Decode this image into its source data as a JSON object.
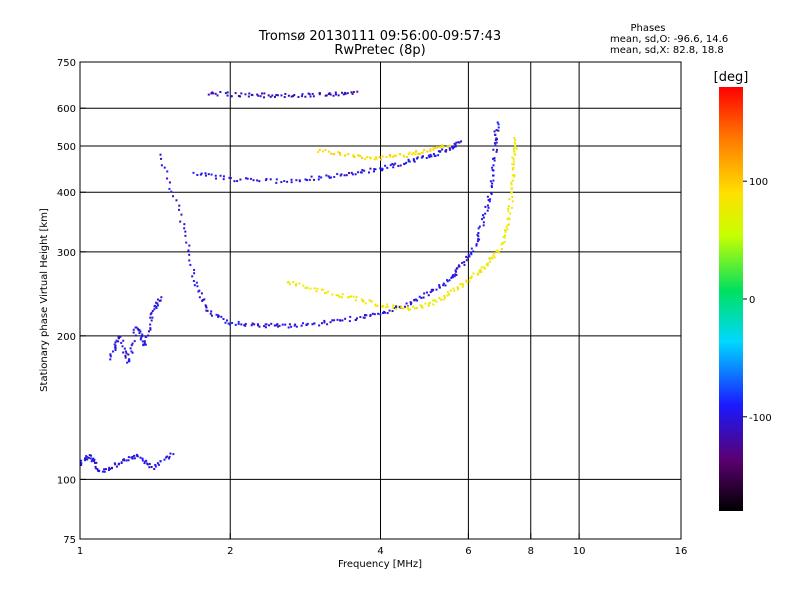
{
  "chart_data": {
    "type": "scatter",
    "title": "Tromsø 20130111 09:56:00-09:57:43",
    "subtitle": "RwPretec (8p)",
    "xlabel": "Frequency [MHz]",
    "ylabel": "Stationary phase Virtual Height [km]",
    "x_scale": "log2",
    "y_scale": "log",
    "xlim": [
      1,
      16
    ],
    "ylim": [
      75,
      750
    ],
    "x_ticks": [
      1,
      2,
      4,
      6,
      8,
      10,
      16
    ],
    "x_tick_labels": [
      "1",
      "2",
      "4",
      "6",
      "8",
      "10",
      "16"
    ],
    "y_ticks": [
      75,
      100,
      200,
      300,
      400,
      500,
      600,
      750
    ],
    "y_tick_labels": [
      "75",
      "100",
      "200",
      "300",
      "400",
      "500",
      "600",
      "750"
    ],
    "grid_x": [
      2,
      4,
      6,
      8,
      10
    ],
    "grid_y": [
      100,
      200,
      300,
      400,
      500,
      600
    ],
    "grid": true,
    "stats": {
      "heading": "Phases",
      "o_line": "mean, sd,O: -96.6, 14.6",
      "x_line": "mean, sd,X: 82.8, 18.8"
    },
    "colorbar": {
      "label": "[deg]",
      "range": [
        -180,
        180
      ],
      "ticks": [
        100,
        0,
        -100
      ],
      "tick_labels": [
        "100",
        "0",
        "-100"
      ]
    },
    "traces": [
      {
        "kind": "o-mode F trace",
        "phase": -100,
        "points": [
          [
            1.45,
            480
          ],
          [
            1.6,
            350
          ],
          [
            1.7,
            260
          ],
          [
            1.8,
            225
          ],
          [
            2.0,
            213
          ],
          [
            2.3,
            210
          ],
          [
            2.6,
            210
          ],
          [
            3.0,
            212
          ],
          [
            3.5,
            217
          ],
          [
            4.0,
            222
          ],
          [
            4.5,
            232
          ],
          [
            5.0,
            245
          ],
          [
            5.5,
            262
          ],
          [
            5.8,
            280
          ],
          [
            6.2,
            310
          ],
          [
            6.5,
            360
          ],
          [
            6.7,
            420
          ],
          [
            6.8,
            500
          ],
          [
            6.85,
            560
          ]
        ]
      },
      {
        "kind": "x-mode F trace",
        "phase": 80,
        "points": [
          [
            2.6,
            260
          ],
          [
            3.0,
            250
          ],
          [
            3.5,
            240
          ],
          [
            4.0,
            232
          ],
          [
            4.5,
            228
          ],
          [
            5.0,
            232
          ],
          [
            5.5,
            245
          ],
          [
            6.0,
            262
          ],
          [
            6.5,
            280
          ],
          [
            6.9,
            300
          ],
          [
            7.2,
            340
          ],
          [
            7.35,
            400
          ],
          [
            7.4,
            470
          ],
          [
            7.45,
            520
          ]
        ]
      },
      {
        "kind": "upper echo trace",
        "phase": -100,
        "points": [
          [
            1.7,
            440
          ],
          [
            2.0,
            425
          ],
          [
            2.5,
            422
          ],
          [
            3.0,
            428
          ],
          [
            3.5,
            437
          ],
          [
            4.0,
            448
          ],
          [
            4.5,
            462
          ],
          [
            5.0,
            475
          ],
          [
            5.5,
            492
          ],
          [
            5.8,
            508
          ]
        ]
      },
      {
        "kind": "upper x trace",
        "phase": 90,
        "points": [
          [
            3.0,
            490
          ],
          [
            3.5,
            475
          ],
          [
            4.0,
            472
          ],
          [
            4.5,
            478
          ],
          [
            5.0,
            490
          ],
          [
            5.5,
            505
          ]
        ]
      },
      {
        "kind": "top echo band",
        "phase": -110,
        "points": [
          [
            1.8,
            645
          ],
          [
            2.1,
            640
          ],
          [
            2.4,
            638
          ],
          [
            2.8,
            640
          ],
          [
            3.2,
            642
          ],
          [
            3.6,
            645
          ]
        ]
      },
      {
        "kind": "low frequency cluster",
        "phase": -100,
        "points": [
          [
            1.15,
            180
          ],
          [
            1.2,
            200
          ],
          [
            1.25,
            175
          ],
          [
            1.3,
            210
          ],
          [
            1.35,
            190
          ],
          [
            1.4,
            225
          ],
          [
            1.45,
            240
          ]
        ]
      },
      {
        "kind": "E-region echoes",
        "phase": -100,
        "points": [
          [
            1.0,
            108
          ],
          [
            1.05,
            112
          ],
          [
            1.1,
            104
          ],
          [
            1.2,
            108
          ],
          [
            1.3,
            112
          ],
          [
            1.4,
            106
          ],
          [
            1.55,
            114
          ]
        ]
      }
    ]
  }
}
